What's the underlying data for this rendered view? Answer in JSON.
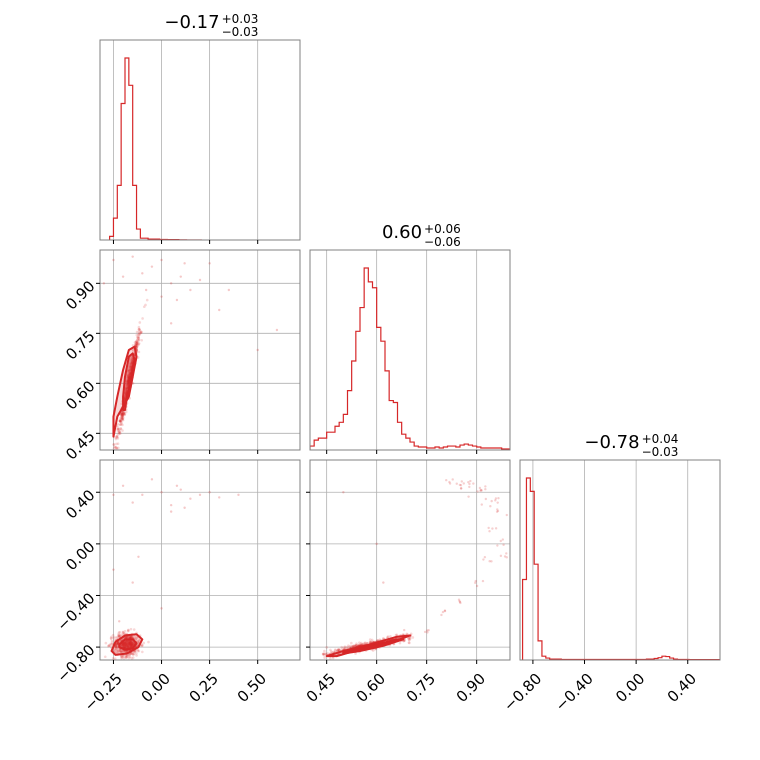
{
  "chart_data": {
    "type": "corner",
    "color": "#d62728",
    "grid": true,
    "panels": [
      {
        "id": "hist-p1",
        "kind": "histogram",
        "row": 0,
        "col": 0,
        "xlim": [
          -0.32,
          0.72
        ],
        "title": {
          "median": "−0.17",
          "plus": "+0.03",
          "minus": "−0.03"
        },
        "x_ticks": [
          -0.25,
          0.0,
          0.25,
          0.5
        ],
        "bins": {
          "start": -0.27,
          "width": 0.02,
          "counts": [
            0.02,
            0.12,
            0.3,
            0.75,
            1.0,
            0.85,
            0.3,
            0.06,
            0.01,
            0.01,
            0.005,
            0.005,
            0.005,
            0.003,
            0.003,
            0.002,
            0.002,
            0.002,
            0.001,
            0.001,
            0,
            0,
            0,
            0
          ]
        }
      },
      {
        "id": "hist-p2",
        "kind": "histogram",
        "row": 1,
        "col": 1,
        "xlim": [
          0.4,
          1.0
        ],
        "title": {
          "median": "0.60",
          "plus": "+0.06",
          "minus": "−0.06"
        },
        "x_ticks": [
          0.45,
          0.6,
          0.75,
          0.9
        ],
        "bins": {
          "start": 0.4,
          "width": 0.0125,
          "counts": [
            0.02,
            0.05,
            0.06,
            0.06,
            0.09,
            0.09,
            0.12,
            0.14,
            0.18,
            0.3,
            0.45,
            0.6,
            0.72,
            0.92,
            0.85,
            0.82,
            0.62,
            0.55,
            0.4,
            0.25,
            0.24,
            0.14,
            0.08,
            0.06,
            0.04,
            0.02,
            0.015,
            0.015,
            0.01,
            0.01,
            0.015,
            0.01,
            0.015,
            0.02,
            0.02,
            0.015,
            0.025,
            0.03,
            0.025,
            0.02,
            0.015,
            0.01,
            0.01,
            0.01,
            0.01,
            0.01,
            0.005,
            0.005
          ]
        }
      },
      {
        "id": "hist-p3",
        "kind": "histogram",
        "row": 2,
        "col": 2,
        "xlim": [
          -0.9,
          0.65
        ],
        "title": {
          "median": "−0.78",
          "plus": "+0.04",
          "minus": "−0.03"
        },
        "x_ticks": [
          -0.8,
          -0.4,
          0.0,
          0.4
        ],
        "bins": {
          "start": -0.88,
          "width": 0.03,
          "counts": [
            0.42,
            0.95,
            0.88,
            0.5,
            0.1,
            0.02,
            0.01,
            0.005,
            0.005,
            0.005,
            0.003,
            0.003,
            0.003,
            0.003,
            0.003,
            0.003,
            0.003,
            0.003,
            0.003,
            0.003,
            0.003,
            0.003,
            0.003,
            0.003,
            0.003,
            0.003,
            0.003,
            0.003,
            0.003,
            0.003,
            0.003,
            0.003,
            0.005,
            0.005,
            0.008,
            0.012,
            0.02,
            0.018,
            0.01,
            0.005,
            0.003,
            0.003,
            0.003,
            0.002,
            0.002,
            0.002,
            0.002,
            0.002,
            0.002,
            0.002,
            0.002
          ]
        }
      },
      {
        "id": "scatter-p1-p2",
        "kind": "scatter",
        "row": 1,
        "col": 0,
        "xlim": [
          -0.32,
          0.72
        ],
        "ylim": [
          0.4,
          1.0
        ],
        "y_ticks": [
          0.45,
          0.6,
          0.75,
          0.9
        ],
        "core": {
          "type": "linear-ellipse",
          "center": [
            -0.17,
            0.6
          ],
          "slope": 2.7,
          "sx": 0.03,
          "sy_perp": 0.015
        },
        "contours": [
          {
            "level": "inner",
            "points": [
              [
                -0.19,
                0.52
              ],
              [
                -0.18,
                0.56
              ],
              [
                -0.16,
                0.6
              ],
              [
                -0.15,
                0.65
              ],
              [
                -0.14,
                0.67
              ],
              [
                -0.15,
                0.69
              ],
              [
                -0.17,
                0.68
              ],
              [
                -0.19,
                0.62
              ],
              [
                -0.2,
                0.56
              ],
              [
                -0.2,
                0.52
              ]
            ]
          },
          {
            "level": "outer",
            "points": [
              [
                -0.25,
                0.44
              ],
              [
                -0.23,
                0.5
              ],
              [
                -0.17,
                0.56
              ],
              [
                -0.15,
                0.62
              ],
              [
                -0.13,
                0.68
              ],
              [
                -0.14,
                0.71
              ],
              [
                -0.17,
                0.7
              ],
              [
                -0.2,
                0.64
              ],
              [
                -0.23,
                0.56
              ],
              [
                -0.25,
                0.5
              ]
            ]
          }
        ],
        "sparse": [
          [
            -0.05,
            0.95
          ],
          [
            0.05,
            0.9
          ],
          [
            0.1,
            0.92
          ],
          [
            0.0,
            0.97
          ],
          [
            -0.1,
            0.93
          ],
          [
            0.15,
            0.88
          ],
          [
            0.2,
            0.91
          ],
          [
            -0.2,
            0.92
          ],
          [
            -0.25,
            0.97
          ],
          [
            0.08,
            0.85
          ],
          [
            0.3,
            0.82
          ],
          [
            0.35,
            0.88
          ],
          [
            -0.3,
            0.9
          ],
          [
            0.0,
            0.86
          ],
          [
            -0.15,
            0.98
          ],
          [
            0.25,
            0.96
          ],
          [
            0.12,
            0.96
          ],
          [
            -0.08,
            0.88
          ],
          [
            0.6,
            0.76
          ],
          [
            0.5,
            0.7
          ],
          [
            0.05,
            0.78
          ]
        ]
      },
      {
        "id": "scatter-p1-p3",
        "kind": "scatter",
        "row": 2,
        "col": 0,
        "xlim": [
          -0.32,
          0.72
        ],
        "ylim": [
          -0.9,
          0.65
        ],
        "y_ticks": [
          -0.8,
          -0.4,
          0.0,
          0.4
        ],
        "core": {
          "type": "blob",
          "center": [
            -0.18,
            -0.78
          ],
          "sx": 0.035,
          "sy": 0.045
        },
        "contours": [
          {
            "level": "inner",
            "points": [
              [
                -0.22,
                -0.78
              ],
              [
                -0.19,
                -0.74
              ],
              [
                -0.15,
                -0.74
              ],
              [
                -0.13,
                -0.77
              ],
              [
                -0.15,
                -0.81
              ],
              [
                -0.19,
                -0.82
              ],
              [
                -0.22,
                -0.8
              ]
            ]
          },
          {
            "level": "outer",
            "points": [
              [
                -0.26,
                -0.83
              ],
              [
                -0.24,
                -0.76
              ],
              [
                -0.19,
                -0.71
              ],
              [
                -0.13,
                -0.7
              ],
              [
                -0.1,
                -0.74
              ],
              [
                -0.12,
                -0.8
              ],
              [
                -0.18,
                -0.85
              ],
              [
                -0.24,
                -0.86
              ]
            ]
          }
        ],
        "sparse": [
          [
            -0.2,
            0.45
          ],
          [
            -0.1,
            0.38
          ],
          [
            0.0,
            0.4
          ],
          [
            0.05,
            0.3
          ],
          [
            0.1,
            0.42
          ],
          [
            0.15,
            0.35
          ],
          [
            0.2,
            0.38
          ],
          [
            -0.05,
            0.5
          ],
          [
            0.12,
            0.28
          ],
          [
            0.25,
            0.4
          ],
          [
            0.3,
            0.36
          ],
          [
            -0.25,
            0.38
          ],
          [
            0.08,
            0.45
          ],
          [
            -0.15,
            0.32
          ],
          [
            0.4,
            0.38
          ],
          [
            -0.22,
            -0.6
          ],
          [
            -0.25,
            -0.2
          ],
          [
            -0.15,
            -0.3
          ],
          [
            0.0,
            -0.5
          ],
          [
            0.05,
            0.25
          ],
          [
            -0.12,
            -0.1
          ]
        ]
      },
      {
        "id": "scatter-p2-p3",
        "kind": "scatter",
        "row": 2,
        "col": 1,
        "xlim": [
          0.4,
          1.0
        ],
        "ylim": [
          -0.9,
          0.65
        ],
        "core": {
          "type": "linear-band",
          "from": [
            0.45,
            -0.86
          ],
          "to": [
            0.7,
            -0.72
          ],
          "spread": 0.015
        },
        "contours": [
          {
            "level": "inner",
            "points": [
              [
                0.5,
                -0.84
              ],
              [
                0.55,
                -0.81
              ],
              [
                0.6,
                -0.78
              ],
              [
                0.66,
                -0.74
              ],
              [
                0.68,
                -0.74
              ],
              [
                0.62,
                -0.79
              ],
              [
                0.55,
                -0.83
              ],
              [
                0.5,
                -0.85
              ]
            ]
          },
          {
            "level": "outer",
            "points": [
              [
                0.45,
                -0.87
              ],
              [
                0.5,
                -0.83
              ],
              [
                0.58,
                -0.78
              ],
              [
                0.66,
                -0.72
              ],
              [
                0.7,
                -0.71
              ],
              [
                0.65,
                -0.76
              ],
              [
                0.56,
                -0.81
              ],
              [
                0.48,
                -0.87
              ]
            ]
          }
        ],
        "arc": [
          [
            0.7,
            -0.7
          ],
          [
            0.75,
            -0.66
          ],
          [
            0.8,
            -0.55
          ],
          [
            0.85,
            -0.45
          ],
          [
            0.9,
            -0.3
          ],
          [
            0.93,
            -0.1
          ],
          [
            0.95,
            0.1
          ],
          [
            0.97,
            0.25
          ],
          [
            0.96,
            0.35
          ],
          [
            0.92,
            0.42
          ],
          [
            0.88,
            0.45
          ],
          [
            0.85,
            0.48
          ],
          [
            0.82,
            0.5
          ],
          [
            0.98,
            0.0
          ],
          [
            0.99,
            -0.1
          ],
          [
            0.94,
            0.3
          ],
          [
            0.9,
            0.4
          ],
          [
            0.86,
            0.46
          ]
        ],
        "sparse": [
          [
            0.6,
            0.0
          ],
          [
            0.5,
            0.4
          ],
          [
            0.62,
            -0.3
          ]
        ]
      }
    ]
  }
}
